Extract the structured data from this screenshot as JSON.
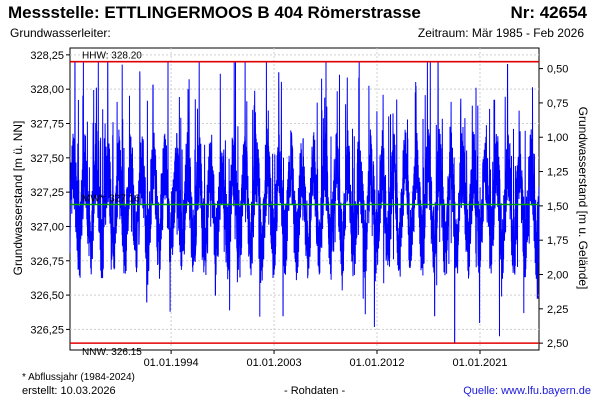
{
  "header": {
    "title": "Messstelle: ETTLINGERMOOS B 404 Römerstrasse",
    "nr": "Nr: 42654",
    "aquifer": "Grundwasserleiter:",
    "period": "Zeitraum: Mär 1985 - Feb 2026"
  },
  "footer": {
    "note": "* Abflussjahr (1984-2024)",
    "created": "erstellt:  10.03.2026",
    "raw": "- Rohdaten -",
    "source": "Quelle: www.lfu.bayern.de"
  },
  "chart_data": {
    "type": "line",
    "ylabel_left": "Grundwasserstand [m ü. NN]",
    "ylabel_right": "Grundwasserstand [m u. Gelände]",
    "ylim": [
      326.1,
      328.3
    ],
    "yticks_left": [
      "328,25",
      "328,00",
      "327,75",
      "327,50",
      "327,25",
      "327,00",
      "326,75",
      "326,50",
      "326,25"
    ],
    "yticks_left_values": [
      328.25,
      328.0,
      327.75,
      327.5,
      327.25,
      327.0,
      326.75,
      326.5,
      326.25
    ],
    "yticks_right": [
      "0,50",
      "0,75",
      "1,00",
      "1,25",
      "1,50",
      "1,75",
      "2,00",
      "2,25",
      "2,50"
    ],
    "yticks_right_values": [
      0.5,
      0.75,
      1.0,
      1.25,
      1.5,
      1.75,
      2.0,
      2.25,
      2.5
    ],
    "ground_level": 328.65,
    "xlim": [
      "1985-03-01",
      "2026-02-28"
    ],
    "xticks": [
      "01.01.1994",
      "01.01.2003",
      "01.01.2012",
      "01.01.2021"
    ],
    "xticks_dates": [
      "1994-01-01",
      "2003-01-01",
      "2012-01-01",
      "2021-01-01"
    ],
    "reference_lines": [
      {
        "label": "HHW: 328.20",
        "value": 328.2,
        "color": "#e00000"
      },
      {
        "label": "MW*: 327.16",
        "value": 327.16,
        "color": "#00a000"
      },
      {
        "label": "NNW: 326.15",
        "value": 326.15,
        "color": "#e00000"
      }
    ],
    "series": [
      {
        "color": "#0000ff",
        "mean": 327.16,
        "min": 326.15,
        "max": 328.2,
        "approx_peaks": [
          {
            "date": "2017-05-01",
            "value": 328.2
          },
          {
            "date": "2023-06-01",
            "value": 328.18
          },
          {
            "date": "2003-06-01",
            "value": 328.12
          },
          {
            "date": "1992-06-01",
            "value": 328.03
          },
          {
            "date": "2010-06-01",
            "value": 328.08
          },
          {
            "date": "1987-06-01",
            "value": 327.75
          }
        ],
        "approx_troughs": [
          {
            "date": "2018-10-15",
            "value": 326.15
          },
          {
            "date": "2022-09-15",
            "value": 326.2
          },
          {
            "date": "2003-10-15",
            "value": 326.35
          },
          {
            "date": "2017-01-15",
            "value": 326.35
          },
          {
            "date": "1991-11-15",
            "value": 326.45
          },
          {
            "date": "1997-11-15",
            "value": 326.5
          }
        ]
      }
    ],
    "grid": true
  }
}
